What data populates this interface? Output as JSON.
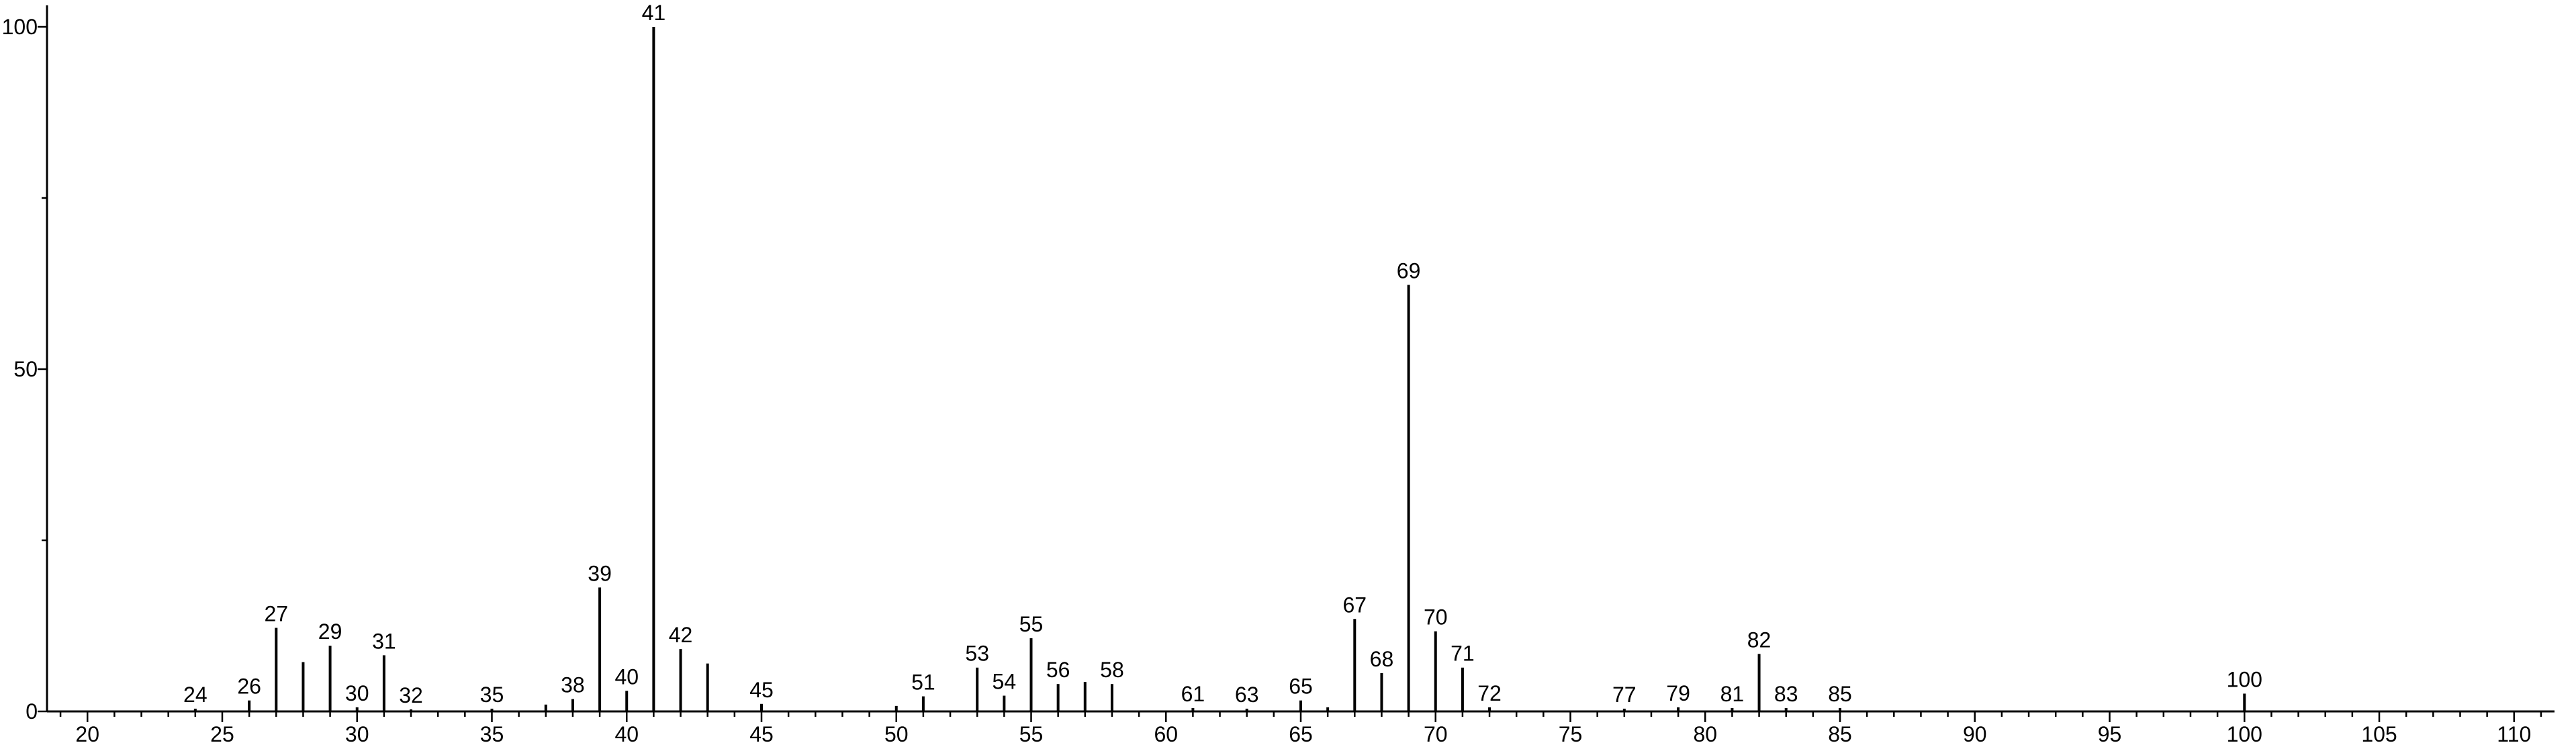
{
  "chart_data": {
    "type": "bar",
    "xlim": [
      18.5,
      111.5
    ],
    "ylim": [
      0,
      100
    ],
    "x_ticks": [
      20,
      25,
      30,
      35,
      40,
      45,
      50,
      55,
      60,
      65,
      70,
      75,
      80,
      85,
      90,
      95,
      100,
      105,
      110
    ],
    "y_ticks": [
      0,
      50,
      100
    ],
    "peaks": [
      {
        "x": 24,
        "y": 0.4,
        "label": "24"
      },
      {
        "x": 26,
        "y": 1.6,
        "label": "26"
      },
      {
        "x": 27,
        "y": 12.2,
        "label": "27"
      },
      {
        "x": 28,
        "y": 7.2,
        "label": ""
      },
      {
        "x": 29,
        "y": 9.6,
        "label": "29"
      },
      {
        "x": 30,
        "y": 0.6,
        "label": "30"
      },
      {
        "x": 31,
        "y": 8.2,
        "label": "31"
      },
      {
        "x": 32,
        "y": 0.3,
        "label": "32"
      },
      {
        "x": 35,
        "y": 0.4,
        "label": "35"
      },
      {
        "x": 37,
        "y": 1.0,
        "label": ""
      },
      {
        "x": 38,
        "y": 1.8,
        "label": "38"
      },
      {
        "x": 39,
        "y": 18.1,
        "label": "39"
      },
      {
        "x": 40,
        "y": 3.0,
        "label": "40"
      },
      {
        "x": 41,
        "y": 100,
        "label": "41"
      },
      {
        "x": 42,
        "y": 9.1,
        "label": "42"
      },
      {
        "x": 43,
        "y": 7.0,
        "label": ""
      },
      {
        "x": 45,
        "y": 1.1,
        "label": "45"
      },
      {
        "x": 50,
        "y": 0.8,
        "label": ""
      },
      {
        "x": 51,
        "y": 2.2,
        "label": "51"
      },
      {
        "x": 53,
        "y": 6.4,
        "label": "53"
      },
      {
        "x": 54,
        "y": 2.3,
        "label": "54"
      },
      {
        "x": 55,
        "y": 10.7,
        "label": "55"
      },
      {
        "x": 56,
        "y": 4.0,
        "label": "56"
      },
      {
        "x": 57,
        "y": 4.3,
        "label": ""
      },
      {
        "x": 58,
        "y": 4.0,
        "label": "58"
      },
      {
        "x": 61,
        "y": 0.5,
        "label": "61"
      },
      {
        "x": 63,
        "y": 0.4,
        "label": "63"
      },
      {
        "x": 65,
        "y": 1.6,
        "label": "65"
      },
      {
        "x": 66,
        "y": 0.6,
        "label": ""
      },
      {
        "x": 67,
        "y": 13.5,
        "label": "67"
      },
      {
        "x": 68,
        "y": 5.6,
        "label": "68"
      },
      {
        "x": 69,
        "y": 62.3,
        "label": "69"
      },
      {
        "x": 70,
        "y": 11.7,
        "label": "70"
      },
      {
        "x": 71,
        "y": 6.4,
        "label": "71"
      },
      {
        "x": 72,
        "y": 0.6,
        "label": "72"
      },
      {
        "x": 77,
        "y": 0.4,
        "label": "77"
      },
      {
        "x": 79,
        "y": 0.6,
        "label": "79"
      },
      {
        "x": 81,
        "y": 0.5,
        "label": "81"
      },
      {
        "x": 82,
        "y": 8.4,
        "label": "82"
      },
      {
        "x": 83,
        "y": 0.5,
        "label": "83"
      },
      {
        "x": 85,
        "y": 0.5,
        "label": "85"
      },
      {
        "x": 100,
        "y": 2.6,
        "label": "100"
      }
    ]
  }
}
